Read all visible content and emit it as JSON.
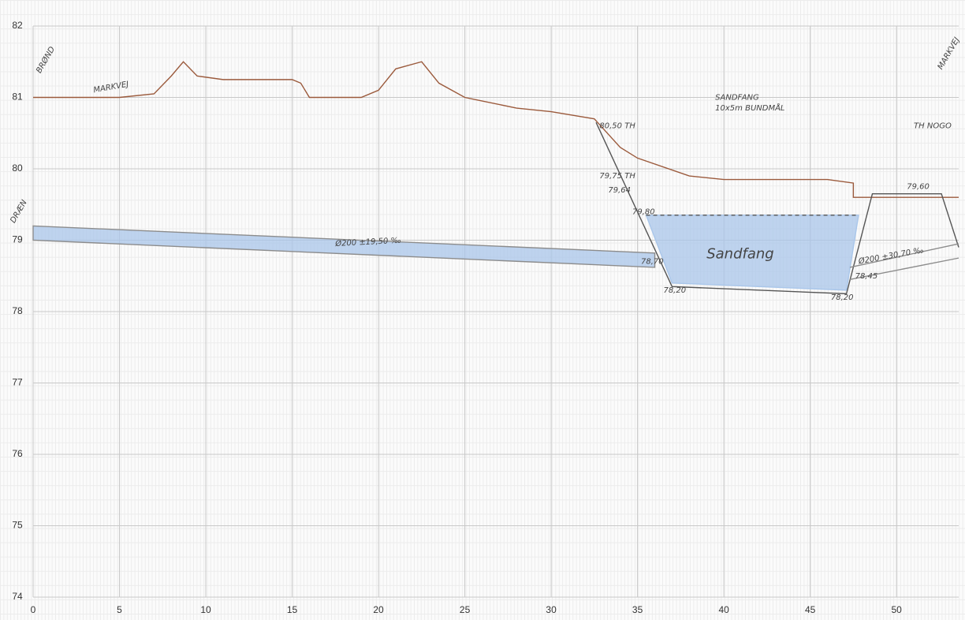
{
  "chart_data": {
    "type": "line",
    "xlim": [
      0,
      53.6
    ],
    "ylim": [
      74,
      82
    ],
    "xticks": [
      0,
      5,
      10,
      15,
      20,
      25,
      30,
      35,
      40,
      45,
      50
    ],
    "yticks": [
      74,
      75,
      76,
      77,
      78,
      79,
      80,
      81,
      82
    ],
    "grid": true,
    "series": [
      {
        "color": "#8c8c8c",
        "fill": "#a9c6ea",
        "x": [
          0,
          36,
          36,
          0
        ],
        "values": [
          79.2,
          78.82,
          78.62,
          79.0
        ]
      },
      {
        "color": "#a9c6ea",
        "fill": "#a9c6ea",
        "x": [
          35.5,
          47.8,
          47.1,
          37
        ],
        "values": [
          79.35,
          79.35,
          78.3,
          78.4
        ]
      },
      {
        "color": "#9b5a3c",
        "x": [
          0,
          5,
          7,
          8,
          8.7,
          9.5,
          11,
          15,
          15.5,
          16,
          19,
          20,
          21,
          22.5,
          23.5,
          25,
          28,
          30,
          32.5,
          34,
          35,
          38,
          40,
          44,
          46,
          47.5,
          47.5,
          49,
          53.6
        ],
        "values": [
          81.0,
          81.0,
          81.05,
          81.3,
          81.5,
          81.3,
          81.25,
          81.25,
          81.2,
          81.0,
          81.0,
          81.1,
          81.4,
          81.5,
          81.2,
          81.0,
          80.85,
          80.8,
          80.7,
          80.3,
          80.15,
          79.9,
          79.85,
          79.85,
          79.85,
          79.8,
          79.6,
          79.6,
          79.6
        ]
      },
      {
        "color": "#555555",
        "x": [
          32.6,
          37,
          47.1,
          48.6,
          52.6,
          53.6
        ],
        "values": [
          80.65,
          78.35,
          78.25,
          79.65,
          79.65,
          78.9
        ]
      },
      {
        "color": "#555555",
        "dash": true,
        "x": [
          35.5,
          47.8
        ],
        "values": [
          79.35,
          79.35
        ]
      },
      {
        "color": "#8c8c8c",
        "x": [
          47.3,
          53.6
        ],
        "values": [
          78.62,
          78.95
        ]
      },
      {
        "color": "#8c8c8c",
        "x": [
          47.3,
          53.6
        ],
        "values": [
          78.45,
          78.75
        ]
      }
    ],
    "annotations": [
      "BRØND",
      "MARKVEJ",
      "SANDFANG",
      "10x5m BUNDMÅL",
      "TH NOGO",
      "80,50 TH",
      "79,75 TH",
      "79,64",
      "79,80",
      "78,70",
      "78,20",
      "78,20",
      "78,45",
      "79,60",
      "Ø200 ±19,50 ‰",
      "Sandfang",
      "Ø200 ±30,70 ‰",
      "DRÆN",
      "MARKVEJ"
    ]
  }
}
